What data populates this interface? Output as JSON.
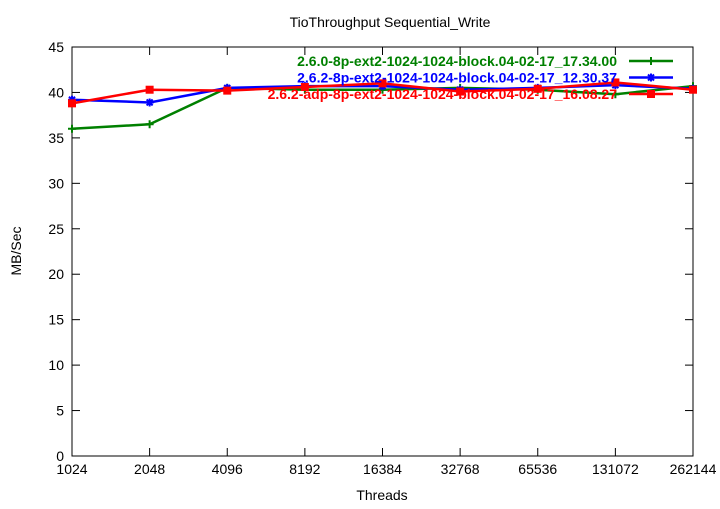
{
  "chart_data": {
    "type": "line",
    "title": "TioThroughput Sequential_Write",
    "xlabel": "Threads",
    "ylabel": "MB/Sec",
    "x_scale": "log2",
    "x": [
      1024,
      2048,
      4096,
      8192,
      16384,
      32768,
      65536,
      131072,
      262144
    ],
    "x_tick_labels": [
      "1024",
      "2048",
      "4096",
      "8192",
      "16384",
      "32768",
      "65536",
      "131072",
      "262144"
    ],
    "ylim": [
      0,
      45
    ],
    "y_ticks": [
      0,
      5,
      10,
      15,
      20,
      25,
      30,
      35,
      40,
      45
    ],
    "grid": false,
    "legend_placement": "top-right",
    "series": [
      {
        "name": "2.6.0-8p-ext2-1024-1024-block.04-02-17_17.34.00",
        "color": "#008000",
        "marker": "plus",
        "values": [
          36.0,
          36.5,
          40.5,
          40.3,
          40.3,
          40.5,
          40.3,
          39.8,
          40.7
        ]
      },
      {
        "name": "2.6.2-8p-ext2-1024-1024-block.04-02-17_12.30.37",
        "color": "#0000ff",
        "marker": "star",
        "values": [
          39.2,
          38.9,
          40.5,
          40.7,
          40.7,
          40.3,
          40.5,
          40.8,
          40.4
        ]
      },
      {
        "name": "2.6.2-adp-8p-ext2-1024-1024-block.04-02-17_16.08.27",
        "color": "#ff0000",
        "marker": "square",
        "values": [
          38.8,
          40.3,
          40.2,
          40.6,
          41.0,
          40.1,
          40.4,
          41.1,
          40.3
        ]
      }
    ]
  }
}
